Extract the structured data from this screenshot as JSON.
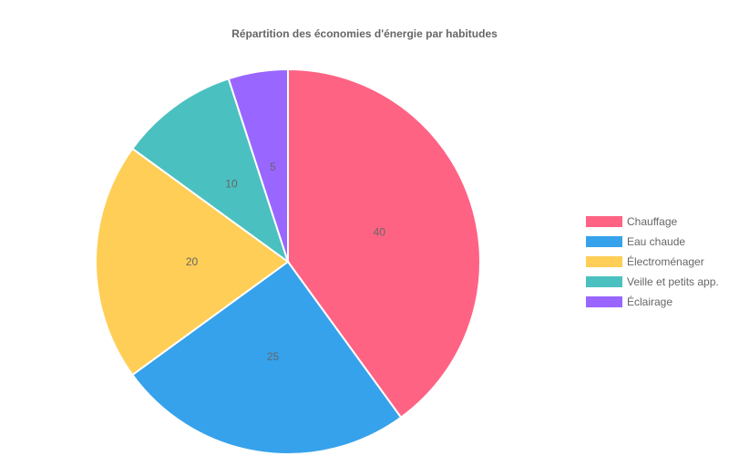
{
  "chart_data": {
    "type": "pie",
    "title": "Répartition des économies d'énergie par habitudes",
    "legend_position": "right",
    "categories": [
      "Chauffage",
      "Eau chaude",
      "Électroménager",
      "Veille et petits app.",
      "Éclairage"
    ],
    "values": [
      40,
      25,
      20,
      10,
      5
    ],
    "colors": [
      "#ff6384",
      "#36a2eb",
      "#ffce56",
      "#4bc0c0",
      "#9966ff"
    ]
  }
}
